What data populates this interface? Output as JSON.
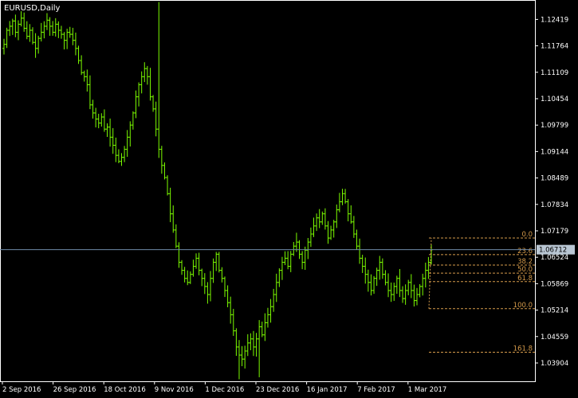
{
  "window": {
    "title": "EURUSD,Daily"
  },
  "colors": {
    "background": "#000000",
    "candle": "#7CFC00",
    "axis": "#ffffff",
    "fib": "#d49a4a",
    "current_price_line": "#6e8aa8"
  },
  "chart_data": {
    "type": "candlestick",
    "symbol": "EURUSD",
    "timeframe": "Daily",
    "x_tick_labels": [
      "2 Sep 2016",
      "26 Sep 2016",
      "18 Oct 2016",
      "9 Nov 2016",
      "1 Dec 2016",
      "23 Dec 2016",
      "16 Jan 2017",
      "7 Feb 2017",
      "1 Mar 2017"
    ],
    "y_tick_labels": [
      "1.12419",
      "1.11764",
      "1.11109",
      "1.10454",
      "1.09799",
      "1.09144",
      "1.08489",
      "1.07834",
      "1.07179",
      "1.06524",
      "1.05869",
      "1.05214",
      "1.04559",
      "1.03904"
    ],
    "ylim": [
      1.0345,
      1.129
    ],
    "current_price": "1.06712",
    "fibonacci": {
      "high": 1.07,
      "low": 1.0525,
      "levels": [
        {
          "label": "0.0",
          "value": 1.07
        },
        {
          "label": "23.6",
          "value": 1.0659
        },
        {
          "label": "38.2",
          "value": 1.0633
        },
        {
          "label": "50.0",
          "value": 1.0613
        },
        {
          "label": "61.8",
          "value": 1.0592
        },
        {
          "label": "100.0",
          "value": 1.0525
        },
        {
          "label": "161.8",
          "value": 1.0417
        }
      ]
    },
    "closes": [
      1.118,
      1.1215,
      1.1225,
      1.1238,
      1.121,
      1.123,
      1.1245,
      1.122,
      1.12,
      1.1215,
      1.1185,
      1.117,
      1.1195,
      1.121,
      1.1225,
      1.124,
      1.1225,
      1.121,
      1.123,
      1.1215,
      1.1205,
      1.119,
      1.121,
      1.1205,
      1.119,
      1.117,
      1.114,
      1.111,
      1.11,
      1.108,
      1.103,
      1.101,
      1.0995,
      1.0985,
      1.1,
      1.097,
      1.0975,
      1.095,
      1.093,
      1.0905,
      1.089,
      1.09,
      1.092,
      1.095,
      1.098,
      1.101,
      1.105,
      1.108,
      1.11,
      1.112,
      1.11,
      1.105,
      1.102,
      1.097,
      1.092,
      1.088,
      1.085,
      1.081,
      1.076,
      1.072,
      1.068,
      1.064,
      1.062,
      1.06,
      1.059,
      1.061,
      1.063,
      1.065,
      1.062,
      1.06,
      1.058,
      1.056,
      1.06,
      1.064,
      1.066,
      1.062,
      1.06,
      1.057,
      1.054,
      1.051,
      1.047,
      1.043,
      1.041,
      1.04,
      1.042,
      1.044,
      1.045,
      1.043,
      1.045,
      1.048,
      1.046,
      1.049,
      1.051,
      1.053,
      1.056,
      1.059,
      1.062,
      1.064,
      1.065,
      1.063,
      1.066,
      1.068,
      1.069,
      1.066,
      1.064,
      1.067,
      1.069,
      1.071,
      1.073,
      1.075,
      1.074,
      1.076,
      1.073,
      1.07,
      1.072,
      1.074,
      1.077,
      1.079,
      1.081,
      1.079,
      1.076,
      1.074,
      1.071,
      1.068,
      1.065,
      1.063,
      1.061,
      1.059,
      1.057,
      1.06,
      1.062,
      1.064,
      1.061,
      1.059,
      1.057,
      1.056,
      1.058,
      1.06,
      1.057,
      1.055,
      1.057,
      1.059,
      1.057,
      1.0545,
      1.056,
      1.058,
      1.06,
      1.062,
      1.064,
      1.0671
    ]
  }
}
